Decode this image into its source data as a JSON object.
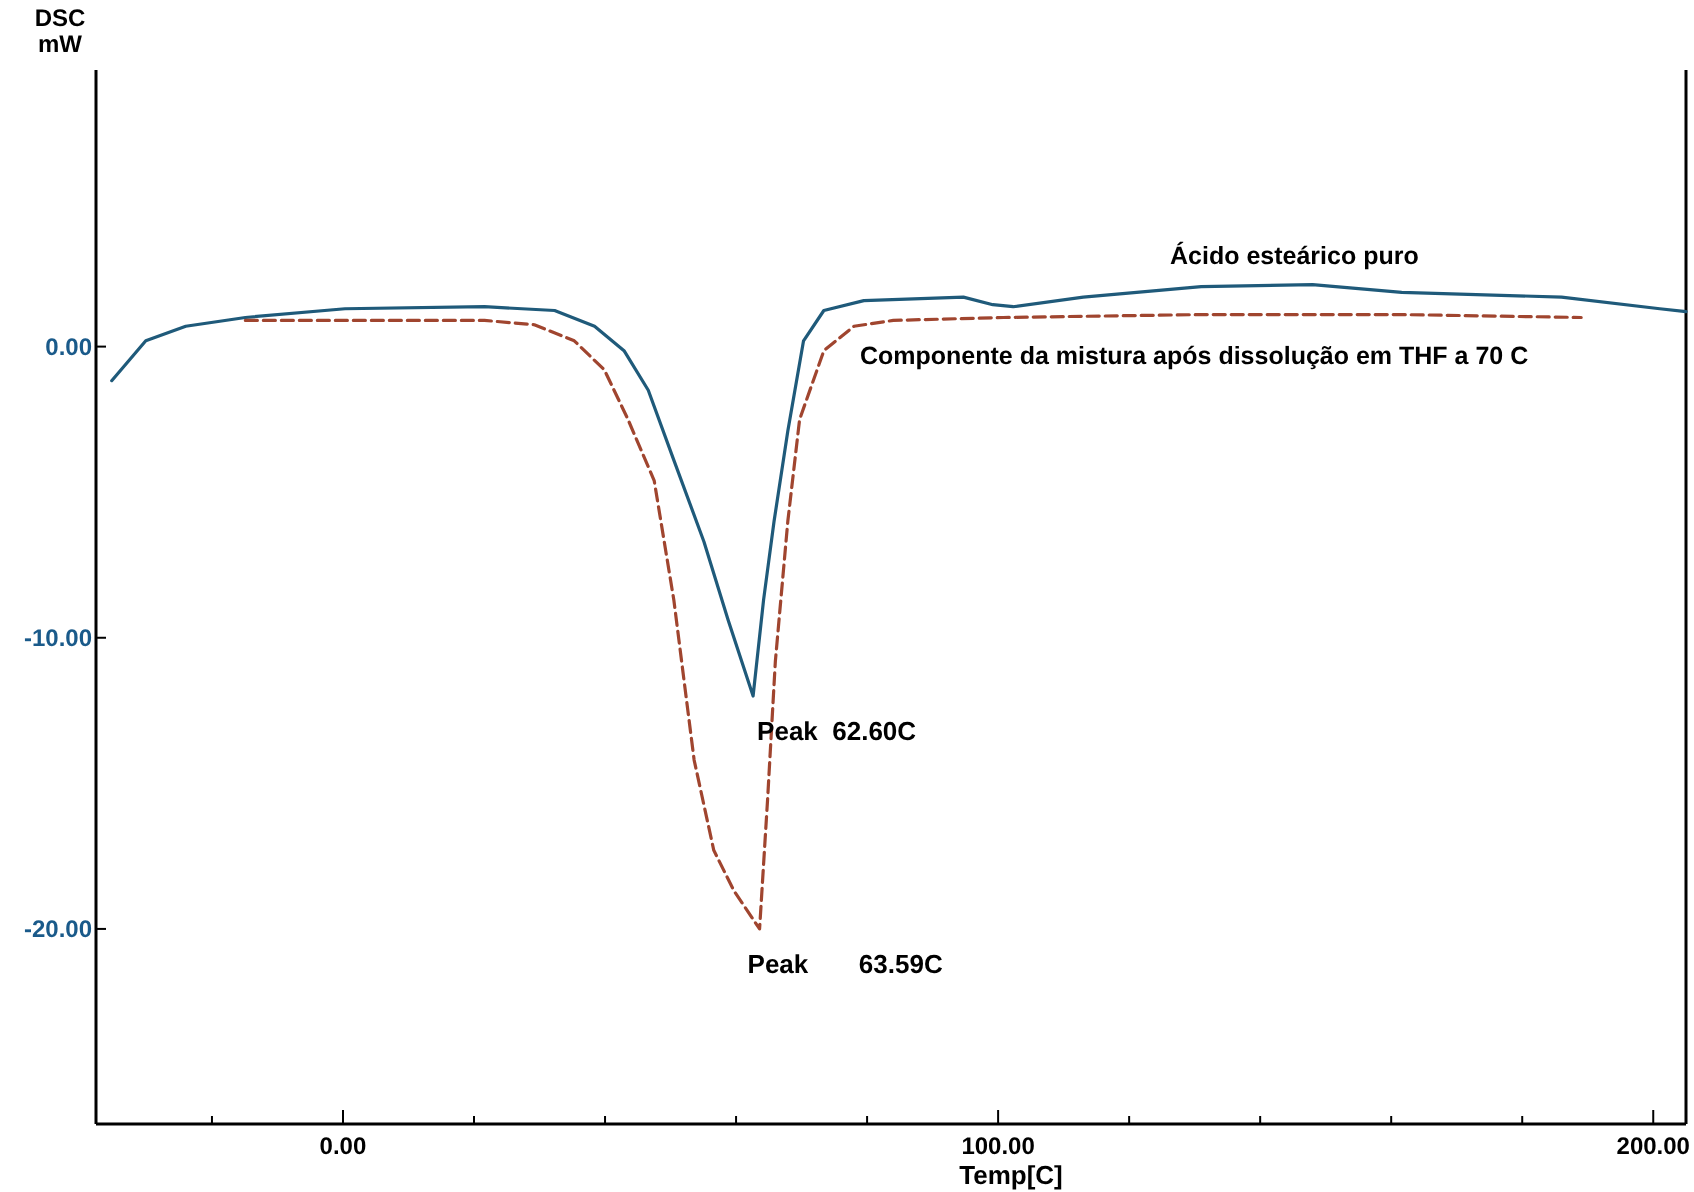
{
  "chart_data": {
    "type": "line",
    "ylabel": "DSC\nmW",
    "xlabel": "Temp[C]",
    "xlim": [
      -37.7,
      205
    ],
    "ylim": [
      -26.7,
      9.5
    ],
    "xticks": [
      {
        "value": -20,
        "label": null
      },
      {
        "value": 0,
        "label": "0.00"
      },
      {
        "value": 20,
        "label": null
      },
      {
        "value": 40,
        "label": null
      },
      {
        "value": 60,
        "label": null
      },
      {
        "value": 80,
        "label": null
      },
      {
        "value": 100,
        "label": "100.00"
      },
      {
        "value": 120,
        "label": null
      },
      {
        "value": 140,
        "label": null
      },
      {
        "value": 160,
        "label": null
      },
      {
        "value": 180,
        "label": null
      },
      {
        "value": 200,
        "label": "200.00"
      }
    ],
    "yticks": [
      {
        "value": 0,
        "label": "0.00"
      },
      {
        "value": -10,
        "label": "-10.00"
      },
      {
        "value": -20,
        "label": "-20.00"
      }
    ],
    "series": [
      {
        "name": "Ácido esteárico puro",
        "color": "#1f5a7a",
        "line_style": "solid",
        "x": [
          -35.3,
          -30.1,
          -24,
          -14.9,
          0.3,
          21.6,
          32.3,
          38.4,
          42.9,
          46.6,
          50.5,
          55.1,
          58.8,
          62.6,
          64.2,
          65.8,
          67.9,
          70.3,
          73.4,
          79.5,
          94.7,
          99.2,
          102.3,
          113,
          131,
          148,
          161.6,
          186,
          201,
          205
        ],
        "values": [
          -1.17,
          0.2,
          0.7,
          1.0,
          1.3,
          1.37,
          1.24,
          0.7,
          -0.14,
          -1.5,
          -3.9,
          -6.7,
          -9.4,
          -12,
          -8.7,
          -6,
          -2.9,
          0.2,
          1.24,
          1.58,
          1.7,
          1.44,
          1.37,
          1.7,
          2.06,
          2.13,
          1.86,
          1.7,
          1.3,
          1.2
        ]
      },
      {
        "name": "Componente da mistura após dissolução em THF a 70 C",
        "color": "#a0452f",
        "line_style": "dashed",
        "x": [
          -14.9,
          15.5,
          21.6,
          29.2,
          35.3,
          39.9,
          43.5,
          47.5,
          50.5,
          53.6,
          56.6,
          59.7,
          63.59,
          64.8,
          66,
          67.9,
          69.7,
          73.4,
          78,
          84,
          100.8,
          131,
          161.6,
          189
        ],
        "values": [
          0.9,
          0.9,
          0.9,
          0.75,
          0.2,
          -0.8,
          -2.5,
          -4.6,
          -8.7,
          -14.2,
          -17.3,
          -18.7,
          -20,
          -15.6,
          -10.8,
          -6,
          -2.5,
          -0.14,
          0.7,
          0.9,
          1.0,
          1.1,
          1.1,
          1.0
        ]
      }
    ],
    "annotations": [
      {
        "text": "Peak  62.60C",
        "x": 62.6,
        "y": -12
      },
      {
        "text": "Peak       63.59C",
        "x": 63.59,
        "y": -20
      }
    ]
  }
}
